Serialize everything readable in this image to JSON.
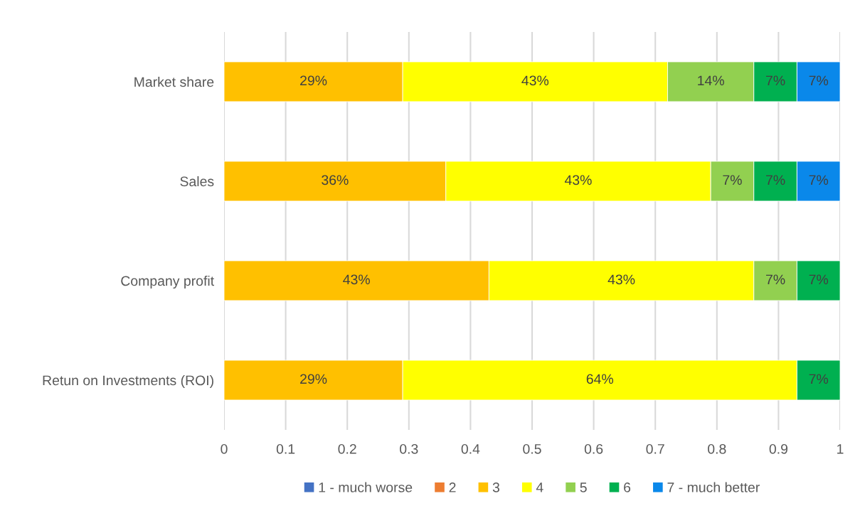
{
  "chart_data": {
    "type": "bar",
    "orientation": "horizontal",
    "stacked": true,
    "categories": [
      "Market share",
      "Sales",
      "Company profit",
      "Retun on Investments (ROI)"
    ],
    "series": [
      {
        "name": "1 - much worse",
        "color": "#4472c4",
        "values": [
          null,
          null,
          null,
          null
        ],
        "value_labels": [
          null,
          null,
          null,
          null
        ]
      },
      {
        "name": "2",
        "color": "#ed7d31",
        "values": [
          null,
          null,
          null,
          null
        ],
        "value_labels": [
          null,
          null,
          null,
          null
        ]
      },
      {
        "name": "3",
        "color": "#ffc000",
        "values": [
          0.29,
          0.36,
          0.43,
          0.29
        ],
        "value_labels": [
          "29%",
          "36%",
          "43%",
          "29%"
        ]
      },
      {
        "name": "4",
        "color": "#ffff00",
        "values": [
          0.43,
          0.43,
          0.43,
          0.64
        ],
        "value_labels": [
          "43%",
          "43%",
          "43%",
          "64%"
        ]
      },
      {
        "name": "5",
        "color": "#92d050",
        "values": [
          0.14,
          0.07,
          0.07,
          null
        ],
        "value_labels": [
          "14%",
          "7%",
          "7%",
          null
        ]
      },
      {
        "name": "6",
        "color": "#00b050",
        "values": [
          0.07,
          0.07,
          0.07,
          0.07
        ],
        "value_labels": [
          "7%",
          "7%",
          "7%",
          "7%"
        ]
      },
      {
        "name": "7 - much better",
        "color": "#0a88ea",
        "values": [
          0.07,
          0.07,
          null,
          null
        ],
        "value_labels": [
          "7%",
          "7%",
          null,
          null
        ]
      }
    ],
    "xlim": [
      0,
      1
    ],
    "xticks": [
      0,
      0.1,
      0.2,
      0.3,
      0.4,
      0.5,
      0.6,
      0.7,
      0.8,
      0.9,
      1
    ],
    "grid": "x",
    "legend": "bottom"
  }
}
